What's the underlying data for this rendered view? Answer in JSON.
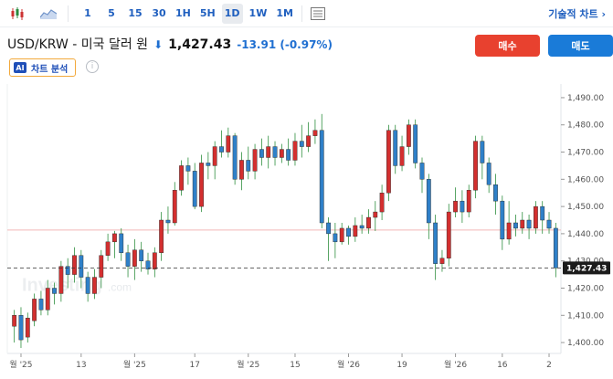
{
  "toolbar": {
    "chart_type_icon": "candlestick-icon",
    "area_icon": "area-chart-icon",
    "intervals": [
      "1",
      "5",
      "15",
      "30",
      "1H",
      "5H",
      "1D",
      "1W",
      "1M"
    ],
    "active_interval": "1D",
    "layout_icon": "layout-icon",
    "tech_link": "기술적 차트 ›"
  },
  "header": {
    "name": "USD/KRW - 미국 달러 원",
    "arrow": "⬇",
    "price": "1,427.43",
    "change": "-13.91 (-0.97%)"
  },
  "buttons": {
    "buy": "매수",
    "sell": "매도"
  },
  "analysis": {
    "badge": "AI",
    "label": "차트 분석",
    "info": "i"
  },
  "watermark": {
    "main": "Investing",
    "sub": ".com"
  },
  "colors": {
    "up": "#d32f2f",
    "down": "#2f80c8",
    "accent": "#1f5fbf",
    "buy": "#e8412f",
    "sell": "#1a7bd8"
  },
  "chart_data": {
    "type": "candlestick",
    "ylim": [
      1396,
      1493
    ],
    "y_ticks": [
      1400,
      1410,
      1420,
      1430,
      1440,
      1450,
      1460,
      1470,
      1480,
      1490
    ],
    "y_tick_labels": [
      "1,400.00",
      "1,410.00",
      "1,420.00",
      "1,430.00",
      "1,440.00",
      "1,450.00",
      "1,460.00",
      "1,470.00",
      "1,480.00",
      "1,490.00"
    ],
    "x_tick_labels": [
      "월 '25",
      "13",
      "월 '25",
      "17",
      "월 '25",
      "15",
      "월 '26",
      "19",
      "월 '26",
      "16",
      "2"
    ],
    "x_tick_index": [
      1,
      10,
      18,
      27,
      35,
      42,
      50,
      58,
      66,
      73,
      80
    ],
    "last_price": 1427.43,
    "last_price_label": "1,427.43",
    "reference_line": 1441.34,
    "candles": [
      [
        1406,
        1410,
        1400,
        1412
      ],
      [
        1410,
        1401,
        1398,
        1413
      ],
      [
        1402,
        1409,
        1400,
        1411
      ],
      [
        1408,
        1416,
        1406,
        1418
      ],
      [
        1416,
        1412,
        1410,
        1419
      ],
      [
        1412,
        1420,
        1410,
        1423
      ],
      [
        1420,
        1418,
        1414,
        1422
      ],
      [
        1418,
        1428,
        1415,
        1430
      ],
      [
        1428,
        1425,
        1420,
        1431
      ],
      [
        1425,
        1432,
        1422,
        1435
      ],
      [
        1432,
        1424,
        1420,
        1434
      ],
      [
        1424,
        1418,
        1415,
        1426
      ],
      [
        1418,
        1424,
        1416,
        1427
      ],
      [
        1424,
        1432,
        1420,
        1434
      ],
      [
        1432,
        1437,
        1430,
        1440
      ],
      [
        1437,
        1440,
        1431,
        1441
      ],
      [
        1440,
        1433,
        1430,
        1442
      ],
      [
        1433,
        1428,
        1424,
        1436
      ],
      [
        1428,
        1434,
        1423,
        1438
      ],
      [
        1434,
        1430,
        1426,
        1437
      ],
      [
        1430,
        1427,
        1425,
        1433
      ],
      [
        1427,
        1433,
        1424,
        1435
      ],
      [
        1433,
        1445,
        1430,
        1448
      ],
      [
        1445,
        1444,
        1440,
        1450
      ],
      [
        1444,
        1456,
        1443,
        1459
      ],
      [
        1456,
        1465,
        1454,
        1467
      ],
      [
        1465,
        1463,
        1458,
        1468
      ],
      [
        1463,
        1450,
        1449,
        1466
      ],
      [
        1450,
        1466,
        1448,
        1469
      ],
      [
        1466,
        1465,
        1460,
        1470
      ],
      [
        1465,
        1472,
        1460,
        1474
      ],
      [
        1472,
        1470,
        1468,
        1478
      ],
      [
        1470,
        1476,
        1468,
        1479
      ],
      [
        1476,
        1460,
        1458,
        1477
      ],
      [
        1460,
        1467,
        1456,
        1470
      ],
      [
        1467,
        1463,
        1460,
        1472
      ],
      [
        1463,
        1471,
        1460,
        1473
      ],
      [
        1471,
        1468,
        1465,
        1475
      ],
      [
        1468,
        1472,
        1464,
        1476
      ],
      [
        1472,
        1468,
        1465,
        1474
      ],
      [
        1468,
        1471,
        1466,
        1473
      ],
      [
        1471,
        1467,
        1465,
        1475
      ],
      [
        1467,
        1474,
        1465,
        1477
      ],
      [
        1474,
        1472,
        1468,
        1480
      ],
      [
        1472,
        1476,
        1470,
        1481
      ],
      [
        1476,
        1478,
        1473,
        1482
      ],
      [
        1478,
        1444,
        1442,
        1484
      ],
      [
        1444,
        1440,
        1430,
        1446
      ],
      [
        1440,
        1437,
        1431,
        1444
      ],
      [
        1437,
        1442,
        1436,
        1444
      ],
      [
        1442,
        1439,
        1436,
        1443
      ],
      [
        1439,
        1443,
        1437,
        1446
      ],
      [
        1443,
        1442,
        1440,
        1447
      ],
      [
        1442,
        1446,
        1440,
        1449
      ],
      [
        1446,
        1448,
        1441,
        1452
      ],
      [
        1448,
        1455,
        1445,
        1458
      ],
      [
        1455,
        1478,
        1452,
        1480
      ],
      [
        1478,
        1465,
        1462,
        1480
      ],
      [
        1465,
        1472,
        1463,
        1476
      ],
      [
        1472,
        1480,
        1469,
        1482
      ],
      [
        1480,
        1466,
        1464,
        1482
      ],
      [
        1466,
        1460,
        1455,
        1468
      ],
      [
        1460,
        1444,
        1438,
        1462
      ],
      [
        1444,
        1429,
        1423,
        1447
      ],
      [
        1429,
        1431,
        1426,
        1434
      ],
      [
        1431,
        1448,
        1428,
        1451
      ],
      [
        1448,
        1452,
        1446,
        1457
      ],
      [
        1452,
        1448,
        1444,
        1456
      ],
      [
        1448,
        1456,
        1446,
        1458
      ],
      [
        1456,
        1474,
        1453,
        1476
      ],
      [
        1474,
        1466,
        1460,
        1476
      ],
      [
        1466,
        1458,
        1455,
        1468
      ],
      [
        1458,
        1452,
        1447,
        1462
      ],
      [
        1452,
        1438,
        1434,
        1454
      ],
      [
        1438,
        1444,
        1436,
        1452
      ],
      [
        1444,
        1442,
        1439,
        1447
      ],
      [
        1442,
        1445,
        1440,
        1448
      ],
      [
        1445,
        1442,
        1438,
        1447
      ],
      [
        1442,
        1450,
        1440,
        1452
      ],
      [
        1450,
        1445,
        1440,
        1452
      ],
      [
        1445,
        1442,
        1440,
        1448
      ],
      [
        1442,
        1427.43,
        1424,
        1444
      ]
    ]
  }
}
